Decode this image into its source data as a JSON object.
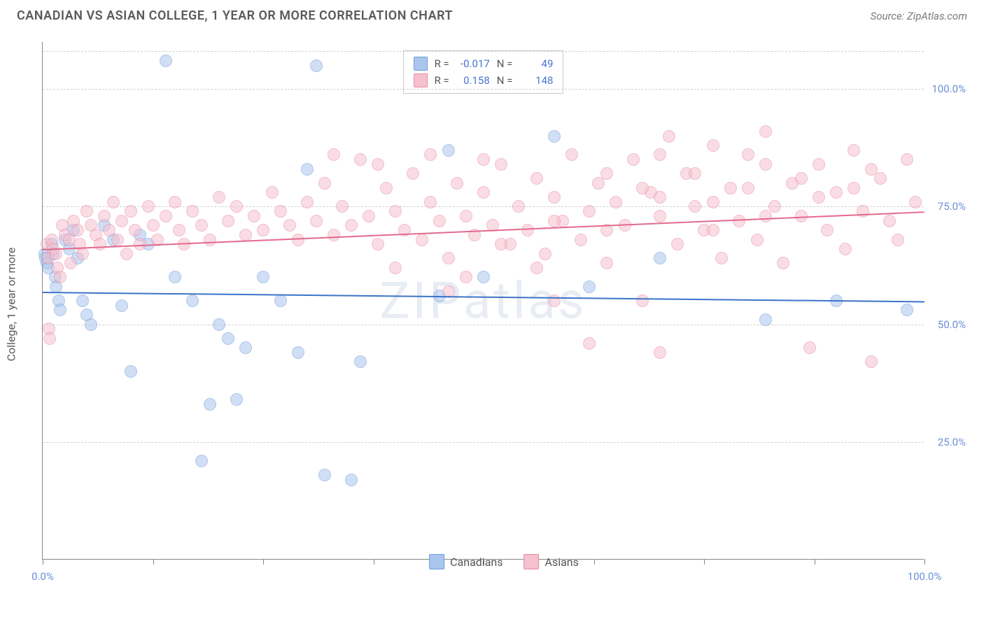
{
  "title": "CANADIAN VS ASIAN COLLEGE, 1 YEAR OR MORE CORRELATION CHART",
  "source_label": "Source: ZipAtlas.com",
  "watermark": "ZIPatlas",
  "y_axis_title": "College, 1 year or more",
  "chart": {
    "type": "scatter",
    "xlim": [
      0,
      100
    ],
    "ylim": [
      0,
      110
    ],
    "y_ticks": [
      25,
      50,
      75,
      100
    ],
    "y_tick_labels": [
      "25.0%",
      "50.0%",
      "75.0%",
      "100.0%"
    ],
    "x_ticks": [
      0,
      12.5,
      25,
      37.5,
      50,
      62.5,
      75,
      87.5,
      100
    ],
    "x_tick_labels_shown": {
      "0": "0.0%",
      "100": "100.0%"
    },
    "background_color": "#ffffff",
    "grid_color": "#cfcfcf",
    "axis_color": "#888888",
    "tick_label_color": "#6b8fd6",
    "marker_radius": 9,
    "marker_opacity": 0.55,
    "series": [
      {
        "name": "Canadians",
        "color_fill": "#aac6ee",
        "color_stroke": "#6b9bd8",
        "r_label": "R =",
        "r_value": "-0.017",
        "n_label": "N =",
        "n_value": "49",
        "trend": {
          "color": "#3b74c8",
          "y_at_x0": 57,
          "y_at_x100": 55
        },
        "points": [
          [
            0.2,
            65
          ],
          [
            0.3,
            64
          ],
          [
            0.5,
            63
          ],
          [
            0.6,
            62
          ],
          [
            1.0,
            67
          ],
          [
            1.2,
            65
          ],
          [
            1.4,
            60
          ],
          [
            1.5,
            58
          ],
          [
            1.8,
            55
          ],
          [
            2.0,
            53
          ],
          [
            2.5,
            68
          ],
          [
            3.0,
            66
          ],
          [
            3.5,
            70
          ],
          [
            4.0,
            64
          ],
          [
            4.5,
            55
          ],
          [
            5.0,
            52
          ],
          [
            5.5,
            50
          ],
          [
            7.0,
            71
          ],
          [
            8.0,
            68
          ],
          [
            9.0,
            54
          ],
          [
            10.0,
            40
          ],
          [
            11.0,
            69
          ],
          [
            12.0,
            67
          ],
          [
            14.0,
            106
          ],
          [
            15.0,
            60
          ],
          [
            17.0,
            55
          ],
          [
            18.0,
            21
          ],
          [
            19.0,
            33
          ],
          [
            20.0,
            50
          ],
          [
            21.0,
            47
          ],
          [
            22.0,
            34
          ],
          [
            23.0,
            45
          ],
          [
            25.0,
            60
          ],
          [
            27.0,
            55
          ],
          [
            29.0,
            44
          ],
          [
            30.0,
            83
          ],
          [
            31.0,
            105
          ],
          [
            32.0,
            18
          ],
          [
            35.0,
            17
          ],
          [
            36.0,
            42
          ],
          [
            45.0,
            56
          ],
          [
            46.0,
            87
          ],
          [
            50.0,
            60
          ],
          [
            58.0,
            90
          ],
          [
            62.0,
            58
          ],
          [
            70.0,
            64
          ],
          [
            82.0,
            51
          ],
          [
            90.0,
            55
          ],
          [
            98.0,
            53
          ]
        ]
      },
      {
        "name": "Asians",
        "color_fill": "#f6c0cf",
        "color_stroke": "#e48aa4",
        "r_label": "R =",
        "r_value": "0.158",
        "n_label": "N =",
        "n_value": "148",
        "trend": {
          "color": "#e36a8d",
          "y_at_x0": 66,
          "y_at_x100": 74
        },
        "points": [
          [
            0.5,
            67
          ],
          [
            0.6,
            64
          ],
          [
            0.7,
            49
          ],
          [
            0.8,
            47
          ],
          [
            1.0,
            68
          ],
          [
            1.2,
            66
          ],
          [
            1.5,
            65
          ],
          [
            1.7,
            62
          ],
          [
            2.0,
            60
          ],
          [
            2.2,
            71
          ],
          [
            2.5,
            69
          ],
          [
            3.0,
            68
          ],
          [
            3.2,
            63
          ],
          [
            3.5,
            72
          ],
          [
            4.0,
            70
          ],
          [
            4.2,
            67
          ],
          [
            4.5,
            65
          ],
          [
            5.0,
            74
          ],
          [
            5.5,
            71
          ],
          [
            6.0,
            69
          ],
          [
            6.5,
            67
          ],
          [
            7.0,
            73
          ],
          [
            7.5,
            70
          ],
          [
            8.0,
            76
          ],
          [
            8.5,
            68
          ],
          [
            9.0,
            72
          ],
          [
            9.5,
            65
          ],
          [
            10.0,
            74
          ],
          [
            10.5,
            70
          ],
          [
            11.0,
            67
          ],
          [
            12.0,
            75
          ],
          [
            12.5,
            71
          ],
          [
            13.0,
            68
          ],
          [
            14.0,
            73
          ],
          [
            15.0,
            76
          ],
          [
            15.5,
            70
          ],
          [
            16.0,
            67
          ],
          [
            17.0,
            74
          ],
          [
            18.0,
            71
          ],
          [
            19.0,
            68
          ],
          [
            20.0,
            77
          ],
          [
            21.0,
            72
          ],
          [
            22.0,
            75
          ],
          [
            23.0,
            69
          ],
          [
            24.0,
            73
          ],
          [
            25.0,
            70
          ],
          [
            26.0,
            78
          ],
          [
            27.0,
            74
          ],
          [
            28.0,
            71
          ],
          [
            29.0,
            68
          ],
          [
            30.0,
            76
          ],
          [
            31.0,
            72
          ],
          [
            32.0,
            80
          ],
          [
            33.0,
            69
          ],
          [
            34.0,
            75
          ],
          [
            35.0,
            71
          ],
          [
            36.0,
            85
          ],
          [
            37.0,
            73
          ],
          [
            38.0,
            67
          ],
          [
            39.0,
            79
          ],
          [
            40.0,
            74
          ],
          [
            41.0,
            70
          ],
          [
            42.0,
            82
          ],
          [
            43.0,
            68
          ],
          [
            44.0,
            76
          ],
          [
            45.0,
            72
          ],
          [
            46.0,
            64
          ],
          [
            47.0,
            80
          ],
          [
            48.0,
            73
          ],
          [
            49.0,
            69
          ],
          [
            50.0,
            78
          ],
          [
            51.0,
            71
          ],
          [
            52.0,
            84
          ],
          [
            53.0,
            67
          ],
          [
            54.0,
            75
          ],
          [
            55.0,
            70
          ],
          [
            56.0,
            81
          ],
          [
            57.0,
            65
          ],
          [
            58.0,
            77
          ],
          [
            59.0,
            72
          ],
          [
            60.0,
            86
          ],
          [
            61.0,
            68
          ],
          [
            62.0,
            74
          ],
          [
            63.0,
            80
          ],
          [
            64.0,
            63
          ],
          [
            65.0,
            76
          ],
          [
            66.0,
            71
          ],
          [
            67.0,
            85
          ],
          [
            68.0,
            55
          ],
          [
            69.0,
            78
          ],
          [
            70.0,
            73
          ],
          [
            71.0,
            90
          ],
          [
            72.0,
            67
          ],
          [
            73.0,
            82
          ],
          [
            74.0,
            75
          ],
          [
            75.0,
            70
          ],
          [
            76.0,
            88
          ],
          [
            77.0,
            64
          ],
          [
            78.0,
            79
          ],
          [
            79.0,
            72
          ],
          [
            80.0,
            86
          ],
          [
            81.0,
            68
          ],
          [
            82.0,
            91
          ],
          [
            83.0,
            75
          ],
          [
            84.0,
            63
          ],
          [
            85.0,
            80
          ],
          [
            86.0,
            73
          ],
          [
            87.0,
            45
          ],
          [
            88.0,
            84
          ],
          [
            89.0,
            70
          ],
          [
            90.0,
            78
          ],
          [
            91.0,
            66
          ],
          [
            92.0,
            87
          ],
          [
            93.0,
            74
          ],
          [
            94.0,
            42
          ],
          [
            95.0,
            81
          ],
          [
            96.0,
            72
          ],
          [
            97.0,
            68
          ],
          [
            98.0,
            85
          ],
          [
            99.0,
            76
          ],
          [
            33.0,
            86
          ],
          [
            38.0,
            84
          ],
          [
            44.0,
            86
          ],
          [
            50.0,
            85
          ],
          [
            56.0,
            62
          ],
          [
            62.0,
            46
          ],
          [
            70.0,
            44
          ],
          [
            68.0,
            79
          ],
          [
            74.0,
            82
          ],
          [
            80.0,
            79
          ],
          [
            86.0,
            81
          ],
          [
            92.0,
            79
          ],
          [
            58.0,
            55
          ],
          [
            48.0,
            60
          ],
          [
            64.0,
            82
          ],
          [
            70.0,
            86
          ],
          [
            76.0,
            76
          ],
          [
            82.0,
            84
          ],
          [
            88.0,
            77
          ],
          [
            94.0,
            83
          ],
          [
            40.0,
            62
          ],
          [
            46.0,
            57
          ],
          [
            52.0,
            67
          ],
          [
            58.0,
            72
          ],
          [
            64.0,
            70
          ],
          [
            70.0,
            77
          ],
          [
            76.0,
            70
          ],
          [
            82.0,
            73
          ]
        ]
      }
    ]
  },
  "bottom_legend": [
    {
      "label": "Canadians",
      "fill": "#aac6ee",
      "stroke": "#6b9bd8"
    },
    {
      "label": "Asians",
      "fill": "#f6c0cf",
      "stroke": "#e48aa4"
    }
  ]
}
